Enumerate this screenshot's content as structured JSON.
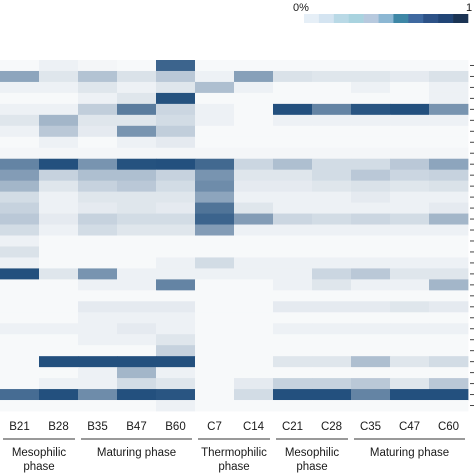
{
  "chart_data": {
    "type": "heatmap",
    "legend": {
      "min_label": "0%",
      "max_label": "1",
      "colors": [
        "#e6eff7",
        "#d4e4f1",
        "#b9d9e6",
        "#a9d3df",
        "#b7c9de",
        "#8cb7d3",
        "#3e87a6",
        "#3f69a0",
        "#2d5287",
        "#214576",
        "#1b3454"
      ]
    },
    "color_scale": {
      "low": "#ffffff",
      "high": "#1f4d7c",
      "range": [
        0,
        1
      ]
    },
    "columns": [
      "B21",
      "B28",
      "B35",
      "B47",
      "B60",
      "C7",
      "C14",
      "C21",
      "C28",
      "C35",
      "C47",
      "C60"
    ],
    "groups": [
      {
        "label": "Mesophilic\nphase",
        "columns": [
          "B21",
          "B28"
        ]
      },
      {
        "label": "Maturing phase",
        "columns": [
          "B35",
          "B47",
          "B60"
        ]
      },
      {
        "label": "Thermophilic\nphase",
        "columns": [
          "C7",
          "C14"
        ]
      },
      {
        "label": "Mesophilic\nphase",
        "columns": [
          "C21",
          "C28"
        ]
      },
      {
        "label": "Maturing phase",
        "columns": [
          "C35",
          "C47",
          "C60"
        ]
      }
    ],
    "rows": [
      [
        0.02,
        0.05,
        0.03,
        0.02,
        0.85,
        0.02,
        0.02,
        0.02,
        0.02,
        0.02,
        0.02,
        0.02
      ],
      [
        0.45,
        0.1,
        0.28,
        0.12,
        0.25,
        0.05,
        0.48,
        0.12,
        0.1,
        0.1,
        0.08,
        0.12
      ],
      [
        0.05,
        0.05,
        0.1,
        0.05,
        0.1,
        0.3,
        0.05,
        0.02,
        0.02,
        0.05,
        0.02,
        0.05
      ],
      [
        0.02,
        0.02,
        0.05,
        0.1,
        0.97,
        0.02,
        0.02,
        0.02,
        0.02,
        0.02,
        0.02,
        0.05
      ],
      [
        0.05,
        0.05,
        0.22,
        0.7,
        0.18,
        0.05,
        0.02,
        0.98,
        0.65,
        0.95,
        0.98,
        0.55
      ],
      [
        0.1,
        0.35,
        0.1,
        0.1,
        0.15,
        0.05,
        0.02,
        0.05,
        0.05,
        0.05,
        0.05,
        0.05
      ],
      [
        0.05,
        0.25,
        0.08,
        0.55,
        0.22,
        0.02,
        0.02,
        0.02,
        0.02,
        0.02,
        0.02,
        0.02
      ],
      [
        0.02,
        0.05,
        0.02,
        0.05,
        0.08,
        0.02,
        0.02,
        0.02,
        0.02,
        0.02,
        0.02,
        0.02
      ],
      [
        0.03,
        0.03,
        0.03,
        0.03,
        0.03,
        0.03,
        0.03,
        0.03,
        0.03,
        0.03,
        0.03,
        0.03
      ],
      [
        0.65,
        0.98,
        0.55,
        0.97,
        0.98,
        0.82,
        0.18,
        0.3,
        0.15,
        0.15,
        0.25,
        0.45
      ],
      [
        0.5,
        0.2,
        0.3,
        0.3,
        0.2,
        0.55,
        0.1,
        0.1,
        0.15,
        0.25,
        0.18,
        0.2
      ],
      [
        0.35,
        0.1,
        0.2,
        0.25,
        0.15,
        0.6,
        0.08,
        0.08,
        0.1,
        0.12,
        0.1,
        0.12
      ],
      [
        0.15,
        0.05,
        0.1,
        0.1,
        0.1,
        0.45,
        0.05,
        0.05,
        0.05,
        0.08,
        0.05,
        0.05
      ],
      [
        0.2,
        0.05,
        0.08,
        0.1,
        0.08,
        0.75,
        0.1,
        0.05,
        0.05,
        0.05,
        0.05,
        0.08
      ],
      [
        0.25,
        0.08,
        0.2,
        0.15,
        0.15,
        0.85,
        0.5,
        0.18,
        0.15,
        0.18,
        0.15,
        0.35
      ],
      [
        0.15,
        0.05,
        0.15,
        0.1,
        0.1,
        0.5,
        0.05,
        0.05,
        0.05,
        0.05,
        0.05,
        0.05
      ],
      [
        0.05,
        0.02,
        0.02,
        0.02,
        0.02,
        0.02,
        0.02,
        0.02,
        0.02,
        0.02,
        0.02,
        0.02
      ],
      [
        0.12,
        0.02,
        0.02,
        0.02,
        0.02,
        0.02,
        0.02,
        0.02,
        0.02,
        0.02,
        0.02,
        0.02
      ],
      [
        0.05,
        0.02,
        0.02,
        0.02,
        0.05,
        0.15,
        0.05,
        0.05,
        0.05,
        0.05,
        0.05,
        0.05
      ],
      [
        0.98,
        0.1,
        0.55,
        0.05,
        0.05,
        0.05,
        0.05,
        0.05,
        0.18,
        0.25,
        0.1,
        0.1
      ],
      [
        0.02,
        0.02,
        0.05,
        0.05,
        0.65,
        0.02,
        0.02,
        0.05,
        0.1,
        0.05,
        0.05,
        0.35
      ],
      [
        0.02,
        0.02,
        0.02,
        0.02,
        0.02,
        0.02,
        0.02,
        0.02,
        0.02,
        0.02,
        0.02,
        0.02
      ],
      [
        0.02,
        0.02,
        0.08,
        0.08,
        0.08,
        0.02,
        0.02,
        0.08,
        0.08,
        0.08,
        0.1,
        0.08
      ],
      [
        0.02,
        0.02,
        0.05,
        0.05,
        0.05,
        0.02,
        0.02,
        0.02,
        0.02,
        0.02,
        0.02,
        0.02
      ],
      [
        0.05,
        0.05,
        0.05,
        0.08,
        0.05,
        0.02,
        0.02,
        0.05,
        0.05,
        0.05,
        0.05,
        0.05
      ],
      [
        0.02,
        0.02,
        0.05,
        0.05,
        0.1,
        0.02,
        0.02,
        0.02,
        0.02,
        0.02,
        0.02,
        0.02
      ],
      [
        0.02,
        0.02,
        0.02,
        0.02,
        0.2,
        0.02,
        0.02,
        0.02,
        0.02,
        0.02,
        0.02,
        0.02
      ],
      [
        0.02,
        0.98,
        0.98,
        0.98,
        0.98,
        0.02,
        0.02,
        0.1,
        0.1,
        0.3,
        0.1,
        0.15
      ],
      [
        0.02,
        0.02,
        0.05,
        0.35,
        0.05,
        0.02,
        0.02,
        0.02,
        0.02,
        0.02,
        0.02,
        0.02
      ],
      [
        0.02,
        0.05,
        0.05,
        0.15,
        0.1,
        0.02,
        0.08,
        0.2,
        0.2,
        0.25,
        0.1,
        0.25
      ],
      [
        0.8,
        0.98,
        0.6,
        0.98,
        0.95,
        0.02,
        0.15,
        0.98,
        0.98,
        0.65,
        0.98,
        0.98
      ],
      [
        0.02,
        0.02,
        0.02,
        0.02,
        0.05,
        0.02,
        0.02,
        0.02,
        0.02,
        0.02,
        0.02,
        0.02
      ]
    ]
  }
}
